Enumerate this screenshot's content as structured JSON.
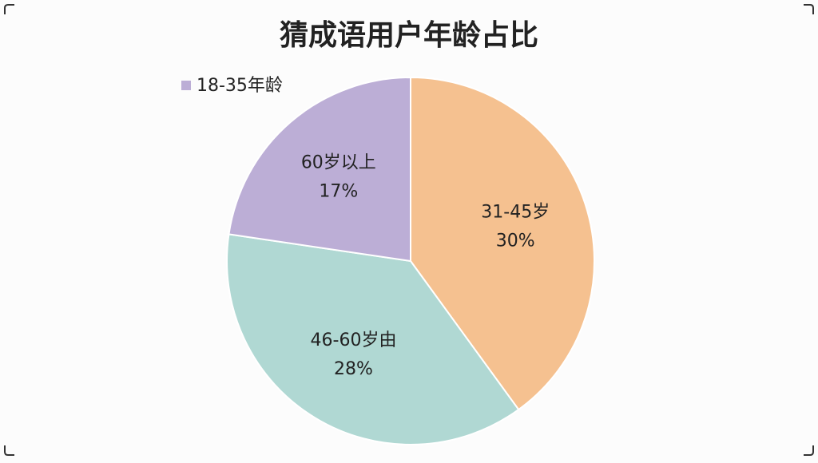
{
  "chart_data": {
    "type": "pie",
    "title": "猜成语用户年龄占比",
    "categories": [
      "31-45岁",
      "46-60岁由",
      "60岁以上"
    ],
    "values": [
      30,
      28,
      17
    ],
    "value_labels": [
      "30%",
      "28%",
      "17%"
    ],
    "colors": [
      "#f5c190",
      "#b0d8d3",
      "#bcaed6"
    ],
    "legend": {
      "label": "18-35年龄",
      "color": "#bcaed6",
      "position": "top-left"
    }
  }
}
